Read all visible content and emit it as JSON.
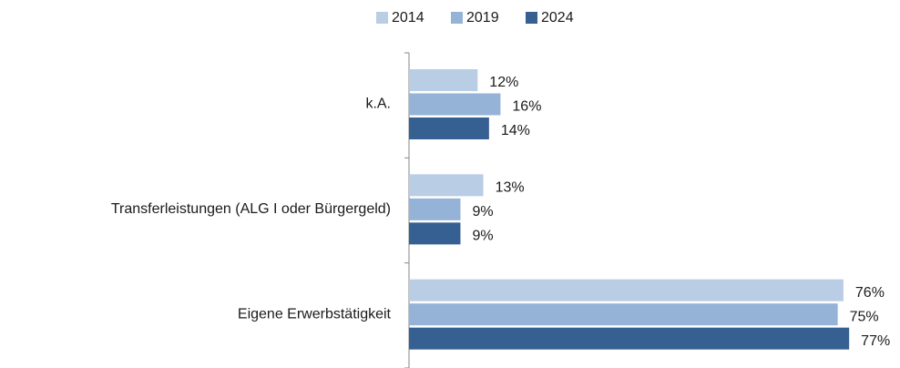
{
  "chart_data": {
    "type": "hbar",
    "categories": [
      "k.A.",
      "Transferleistungen (ALG I oder Bürgergeld)",
      "Eigene Erwerbstätigkeit"
    ],
    "series": [
      {
        "name": "2014",
        "color": "#b9cde5",
        "values": [
          12,
          13,
          76
        ],
        "value_labels": [
          "12%",
          "13%",
          "76%"
        ]
      },
      {
        "name": "2019",
        "color": "#95b3d7",
        "values": [
          16,
          9,
          75
        ],
        "value_labels": [
          "16%",
          "9%",
          "75%"
        ]
      },
      {
        "name": "2024",
        "color": "#376092",
        "values": [
          14,
          9,
          77
        ],
        "value_labels": [
          "14%",
          "9%",
          "77%"
        ]
      }
    ],
    "xlim": [
      0,
      80
    ],
    "legend": "top"
  }
}
